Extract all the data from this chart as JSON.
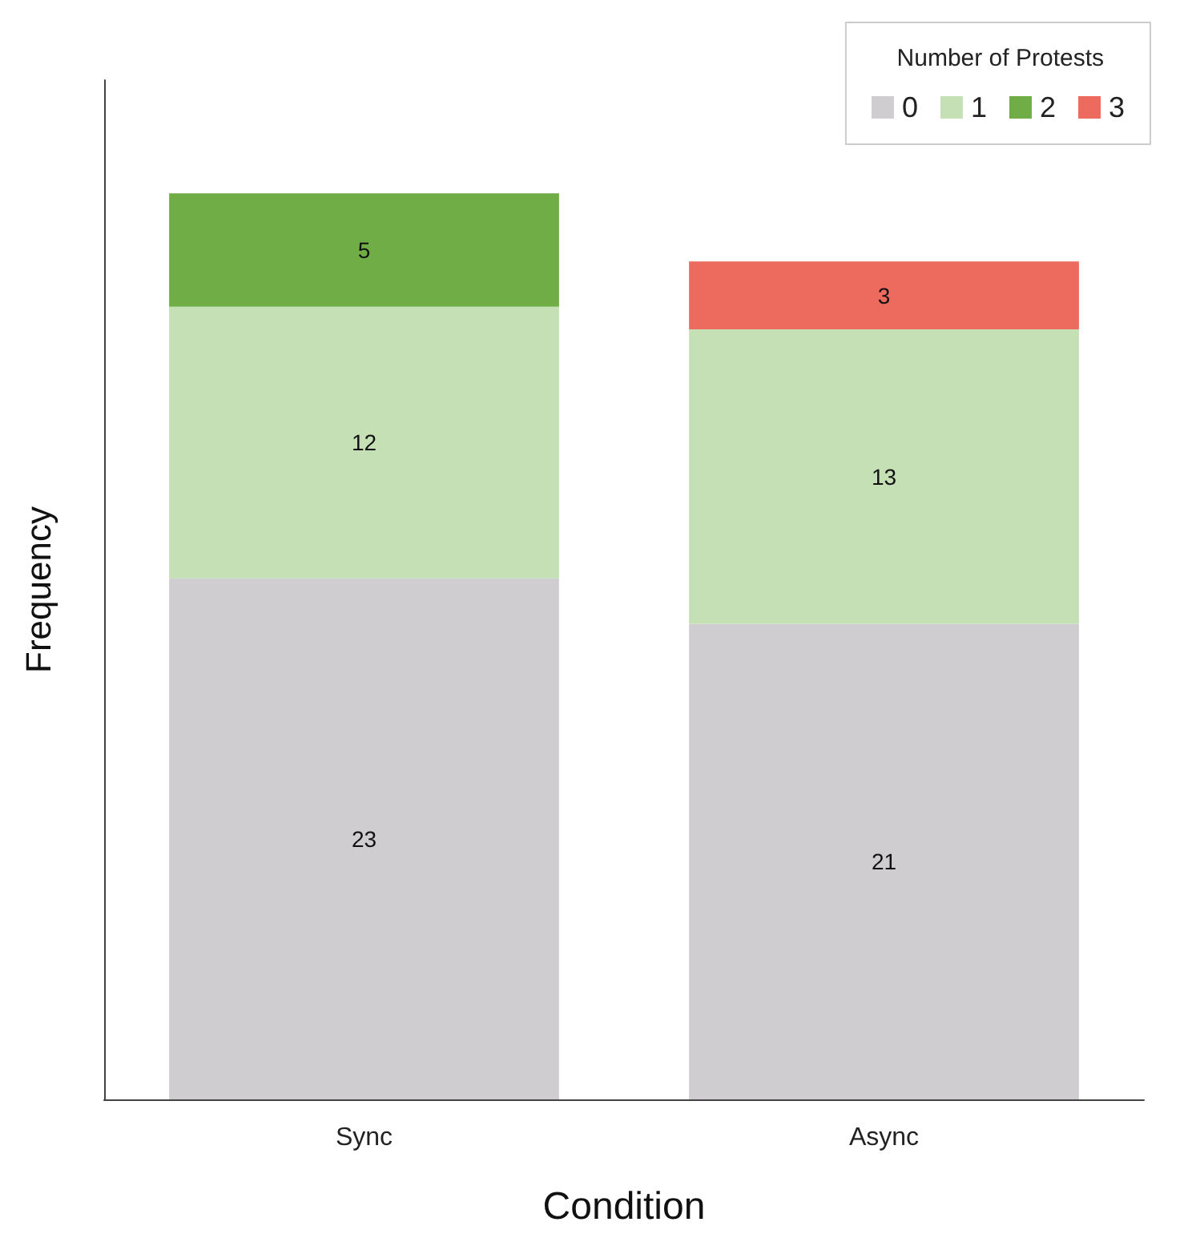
{
  "chart_data": {
    "type": "bar",
    "stacked": true,
    "xlabel": "Condition",
    "ylabel": "Frequency",
    "legend_title": "Number of Protests",
    "categories": [
      "Sync",
      "Async"
    ],
    "series": [
      {
        "name": "0",
        "color": "#d0cdd0",
        "values": [
          23,
          21
        ]
      },
      {
        "name": "1",
        "color": "#c5e0b4",
        "values": [
          12,
          13
        ]
      },
      {
        "name": "2",
        "color": "#70ad47",
        "values": [
          5,
          null
        ]
      },
      {
        "name": "3",
        "color": "#ec6b5e",
        "values": [
          null,
          3
        ]
      }
    ],
    "ylim": [
      0,
      45
    ],
    "data_labels": true,
    "grid": false,
    "legend": "top right",
    "tick_labels": "x"
  }
}
